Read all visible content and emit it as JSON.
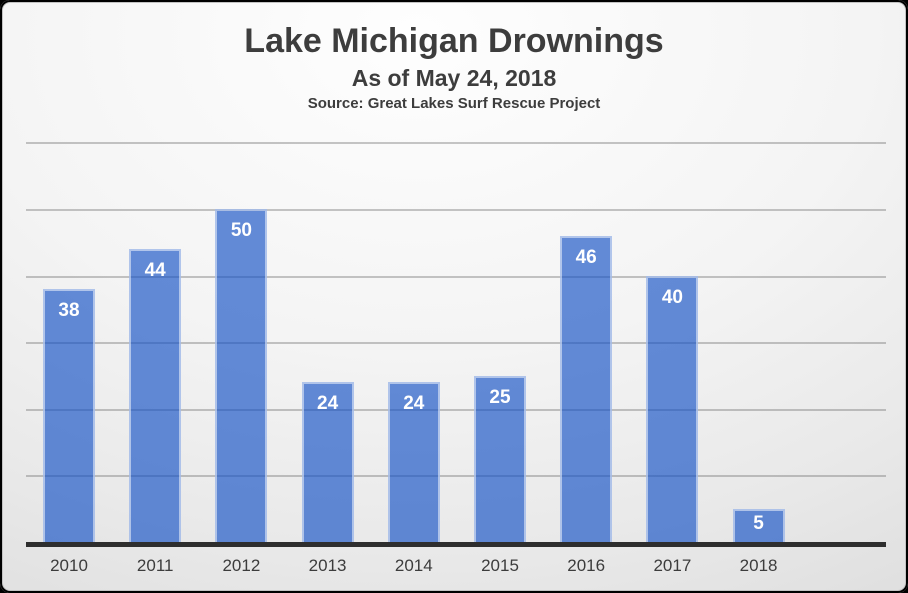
{
  "chart_data": {
    "type": "bar",
    "title": "Lake Michigan Drownings",
    "subtitle": "As of May 24, 2018",
    "source": "Source: Great Lakes Surf Rescue Project",
    "categories": [
      "2010",
      "2011",
      "2012",
      "2013",
      "2014",
      "2015",
      "2016",
      "2017",
      "2018"
    ],
    "values": [
      38,
      44,
      50,
      24,
      24,
      25,
      46,
      40,
      5
    ],
    "xlabel": "",
    "ylabel": "",
    "ylim": [
      0,
      60
    ],
    "gridline_step": 10,
    "grid": true,
    "legend_position": "none",
    "y_axis_tick_labels_visible": false,
    "colors": {
      "bar_fill": "rgba(22, 82, 198, 0.66)",
      "bar_fill_flat": "#5B84D2",
      "bar_border": "rgba(255, 255, 255, 0.5)",
      "bar_value_label": "#FFFFFF",
      "gridline": "rgba(118, 118, 118, 0.42)",
      "axis_line": "#2E2E2E",
      "category_label": "#3C3C3C",
      "title_text": "#3D3D3D",
      "frame_background_top": "#FEFEFE",
      "frame_background_bottom": "#D3D3D3"
    }
  }
}
